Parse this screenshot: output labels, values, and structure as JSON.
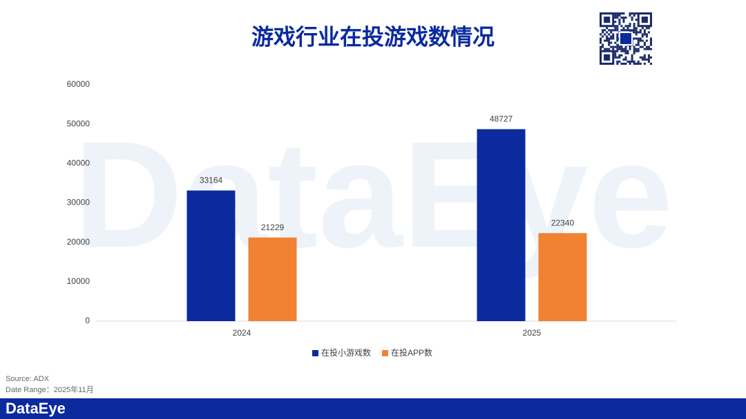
{
  "chart_data": {
    "type": "bar",
    "title": "游戏行业在投游戏数情况",
    "categories": [
      "2024",
      "2025"
    ],
    "series": [
      {
        "name": "在投小游戏数",
        "color": "#0a2a9e",
        "values": [
          33164,
          48727
        ]
      },
      {
        "name": "在投APP数",
        "color": "#f08232",
        "values": [
          21229,
          22340
        ]
      }
    ],
    "ylim": [
      0,
      60000
    ],
    "yticks": [
      0,
      10000,
      20000,
      30000,
      40000,
      50000,
      60000
    ],
    "grid": false,
    "legend": "bottom",
    "source": "Source: ADX",
    "date_range": "Date Range：2025年11月",
    "brand": "DataEye"
  }
}
